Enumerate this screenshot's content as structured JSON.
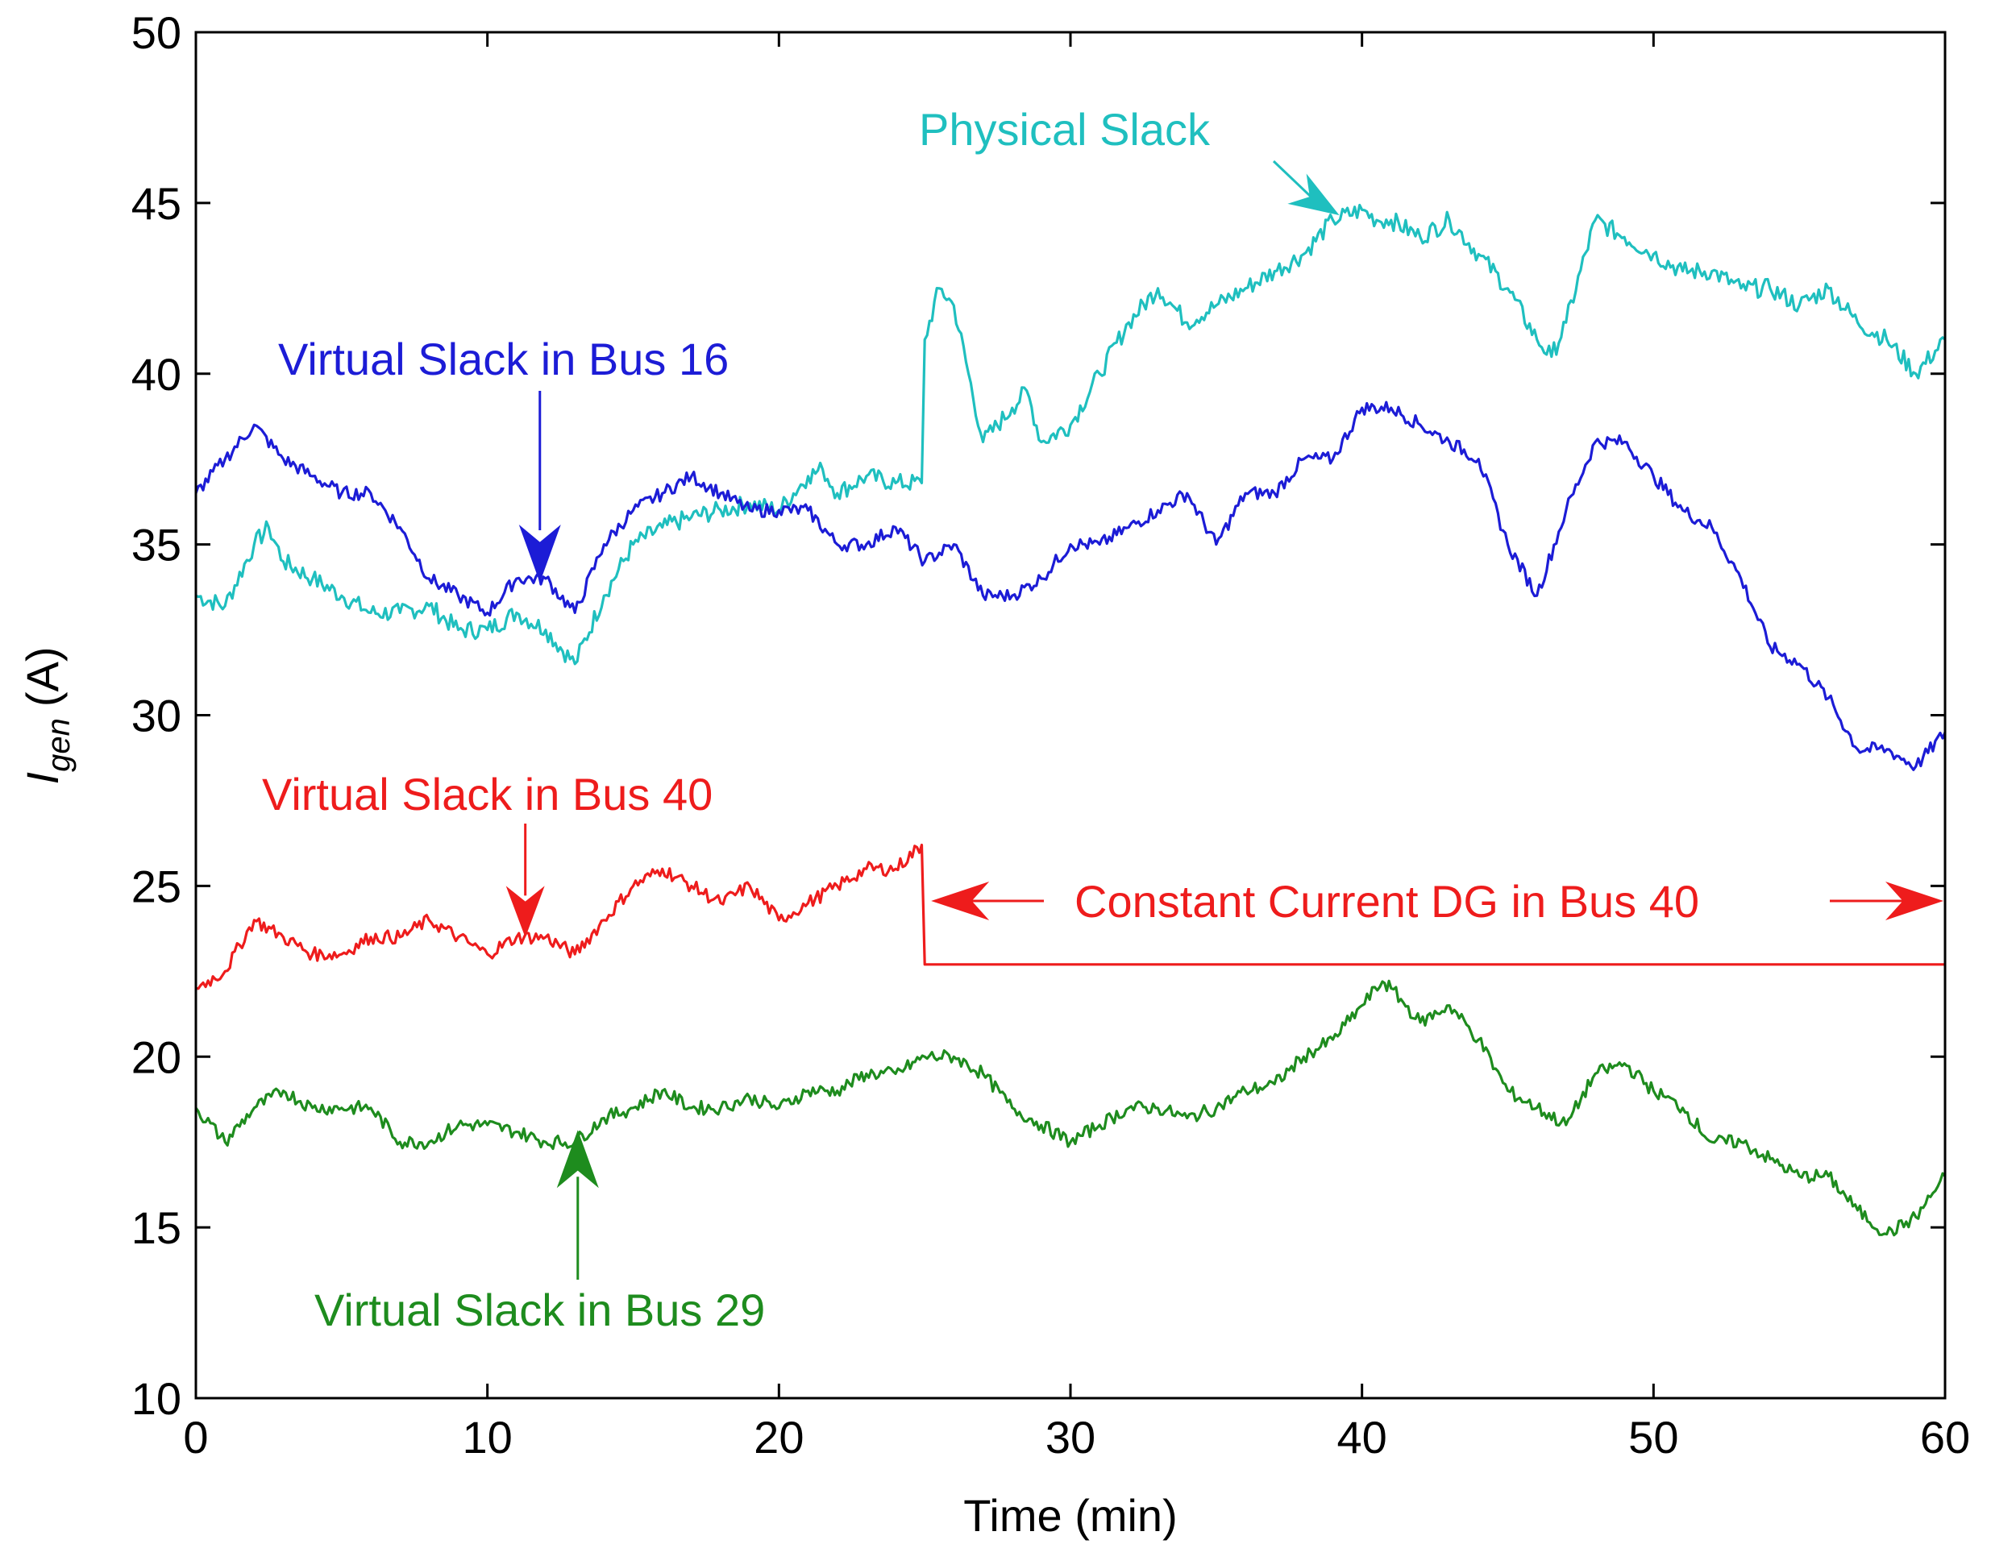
{
  "chart_data": {
    "type": "line",
    "title": "",
    "xlabel": "Time (min)",
    "ylabel_main": "I",
    "ylabel_sub": "gen",
    "ylabel_unit": "(A)",
    "xlim": [
      0,
      60
    ],
    "ylim": [
      10,
      50
    ],
    "xticks": [
      0,
      10,
      20,
      30,
      40,
      50,
      60
    ],
    "yticks": [
      10,
      15,
      20,
      25,
      30,
      35,
      40,
      45,
      50
    ],
    "grid": false,
    "series": [
      {
        "name": "Physical Slack",
        "color": "#1fbfbf",
        "x": [
          0,
          1,
          2,
          2.5,
          3,
          4,
          5,
          6,
          7,
          8,
          9,
          10,
          11,
          12,
          13,
          14,
          15,
          16,
          17,
          18,
          19,
          20,
          21,
          21.5,
          22,
          23,
          24,
          24.9,
          25,
          25.5,
          26,
          27,
          28,
          28.5,
          29,
          30,
          31,
          32,
          33,
          33.5,
          34,
          35,
          36,
          37,
          38,
          39,
          40,
          40.5,
          41,
          42,
          43,
          44,
          45,
          46,
          46.5,
          47,
          48,
          49,
          50,
          51,
          52,
          53,
          54,
          55,
          56,
          57,
          58,
          59,
          60
        ],
        "y": [
          33.5,
          33.2,
          35.0,
          35.5,
          34.5,
          34.0,
          33.5,
          33.0,
          33.0,
          33.2,
          32.5,
          32.5,
          33.0,
          32.5,
          31.5,
          33.5,
          35.0,
          35.5,
          35.8,
          36.0,
          36.2,
          36.0,
          37.0,
          37.2,
          36.5,
          37.0,
          36.8,
          36.8,
          41.0,
          42.5,
          42.0,
          38.0,
          39.0,
          39.5,
          38.0,
          38.5,
          40.0,
          41.5,
          42.5,
          42.0,
          41.5,
          42.0,
          42.5,
          43.0,
          43.5,
          44.5,
          44.8,
          44.5,
          44.5,
          44.0,
          44.5,
          43.5,
          42.5,
          41.0,
          40.5,
          41.5,
          44.5,
          44.0,
          43.5,
          43.0,
          43.0,
          42.5,
          42.5,
          42.0,
          42.5,
          41.5,
          41.0,
          40.0,
          41.0
        ]
      },
      {
        "name": "Virtual Slack in Bus 16",
        "color": "#1c1cd6",
        "x": [
          0,
          1,
          2,
          3,
          4,
          5,
          6,
          7,
          8,
          9,
          10,
          11,
          12,
          13,
          14,
          15,
          16,
          17,
          18,
          19,
          20,
          21,
          22,
          23,
          24,
          25,
          26,
          27,
          28,
          29,
          30,
          31,
          32,
          33,
          34,
          35,
          36,
          37,
          38,
          39,
          40,
          41,
          42,
          43,
          44,
          45,
          46,
          47,
          48,
          49,
          50,
          51,
          52,
          53,
          54,
          55,
          56,
          57,
          58,
          59,
          60
        ],
        "y": [
          36.5,
          37.5,
          38.5,
          37.5,
          37.0,
          36.5,
          36.5,
          35.5,
          34.0,
          33.5,
          33.0,
          34.0,
          34.0,
          33.0,
          35.0,
          36.0,
          36.5,
          37.0,
          36.5,
          36.0,
          36.0,
          36.0,
          35.0,
          35.0,
          35.5,
          34.5,
          35.0,
          33.5,
          33.5,
          34.0,
          35.0,
          35.0,
          35.5,
          36.0,
          36.5,
          35.0,
          36.5,
          36.5,
          37.5,
          37.5,
          39.0,
          39.0,
          38.5,
          38.0,
          37.5,
          35.0,
          33.5,
          36.0,
          38.0,
          38.0,
          37.0,
          36.0,
          35.5,
          34.0,
          32.0,
          31.5,
          30.5,
          29.0,
          29.0,
          28.5,
          29.5
        ]
      },
      {
        "name": "Virtual Slack in Bus 40",
        "color": "#ee1c1c",
        "x": [
          0,
          1,
          2,
          3,
          4,
          5,
          6,
          7,
          8,
          9,
          10,
          11,
          12,
          13,
          14,
          15,
          16,
          17,
          18,
          19,
          20,
          21,
          22,
          23,
          24,
          24.9,
          25,
          30,
          40,
          50,
          60
        ],
        "y": [
          22.0,
          22.5,
          24.0,
          23.5,
          23.0,
          23.0,
          23.5,
          23.5,
          24.0,
          23.5,
          23.0,
          23.5,
          23.5,
          23.0,
          24.0,
          25.0,
          25.5,
          25.0,
          24.5,
          25.0,
          24.0,
          24.5,
          25.0,
          25.5,
          25.5,
          26.2,
          22.7,
          22.7,
          22.7,
          22.7,
          22.7
        ]
      },
      {
        "name": "Virtual Slack in Bus 29",
        "color": "#1e8c1e",
        "x": [
          0,
          1,
          2,
          3,
          4,
          5,
          6,
          7,
          8,
          9,
          10,
          11,
          12,
          13,
          14,
          15,
          16,
          17,
          18,
          19,
          20,
          21,
          22,
          23,
          24,
          25,
          26,
          27,
          28,
          29,
          30,
          31,
          32,
          33,
          34,
          35,
          36,
          37,
          38,
          39,
          40,
          40.7,
          41,
          42,
          43,
          44,
          45,
          46,
          47,
          48,
          49,
          50,
          51,
          52,
          53,
          54,
          55,
          56,
          57,
          58,
          59,
          60
        ],
        "y": [
          18.5,
          17.5,
          18.5,
          19.0,
          18.5,
          18.5,
          18.5,
          17.5,
          17.5,
          18.0,
          18.0,
          17.8,
          17.5,
          17.5,
          18.2,
          18.5,
          19.0,
          18.5,
          18.5,
          18.8,
          18.5,
          19.0,
          19.0,
          19.5,
          19.5,
          20.0,
          20.0,
          19.5,
          18.5,
          18.0,
          17.5,
          18.0,
          18.5,
          18.5,
          18.2,
          18.5,
          19.0,
          19.2,
          20.0,
          20.5,
          21.5,
          22.2,
          22.0,
          21.0,
          21.5,
          20.5,
          19.0,
          18.5,
          18.0,
          19.5,
          19.8,
          19.0,
          18.5,
          17.5,
          17.5,
          17.0,
          16.5,
          16.5,
          15.5,
          14.8,
          15.3,
          16.5
        ]
      }
    ],
    "annotations": [
      {
        "text": "Physical Slack",
        "color": "#1fbfbf",
        "points_to": [
          39.5,
          44.5
        ]
      },
      {
        "text": "Virtual Slack in Bus 16",
        "color": "#1c1cd6",
        "points_to": [
          11.8,
          34.0
        ]
      },
      {
        "text": "Virtual Slack in Bus 40",
        "color": "#ee1c1c",
        "points_to": [
          11.3,
          23.3
        ]
      },
      {
        "text": "Constant Current DG in Bus 40",
        "color": "#ee1c1c",
        "span": [
          25,
          60
        ]
      },
      {
        "text": "Virtual Slack in Bus 29",
        "color": "#1e8c1e",
        "points_to": [
          13.1,
          17.9
        ]
      }
    ]
  }
}
